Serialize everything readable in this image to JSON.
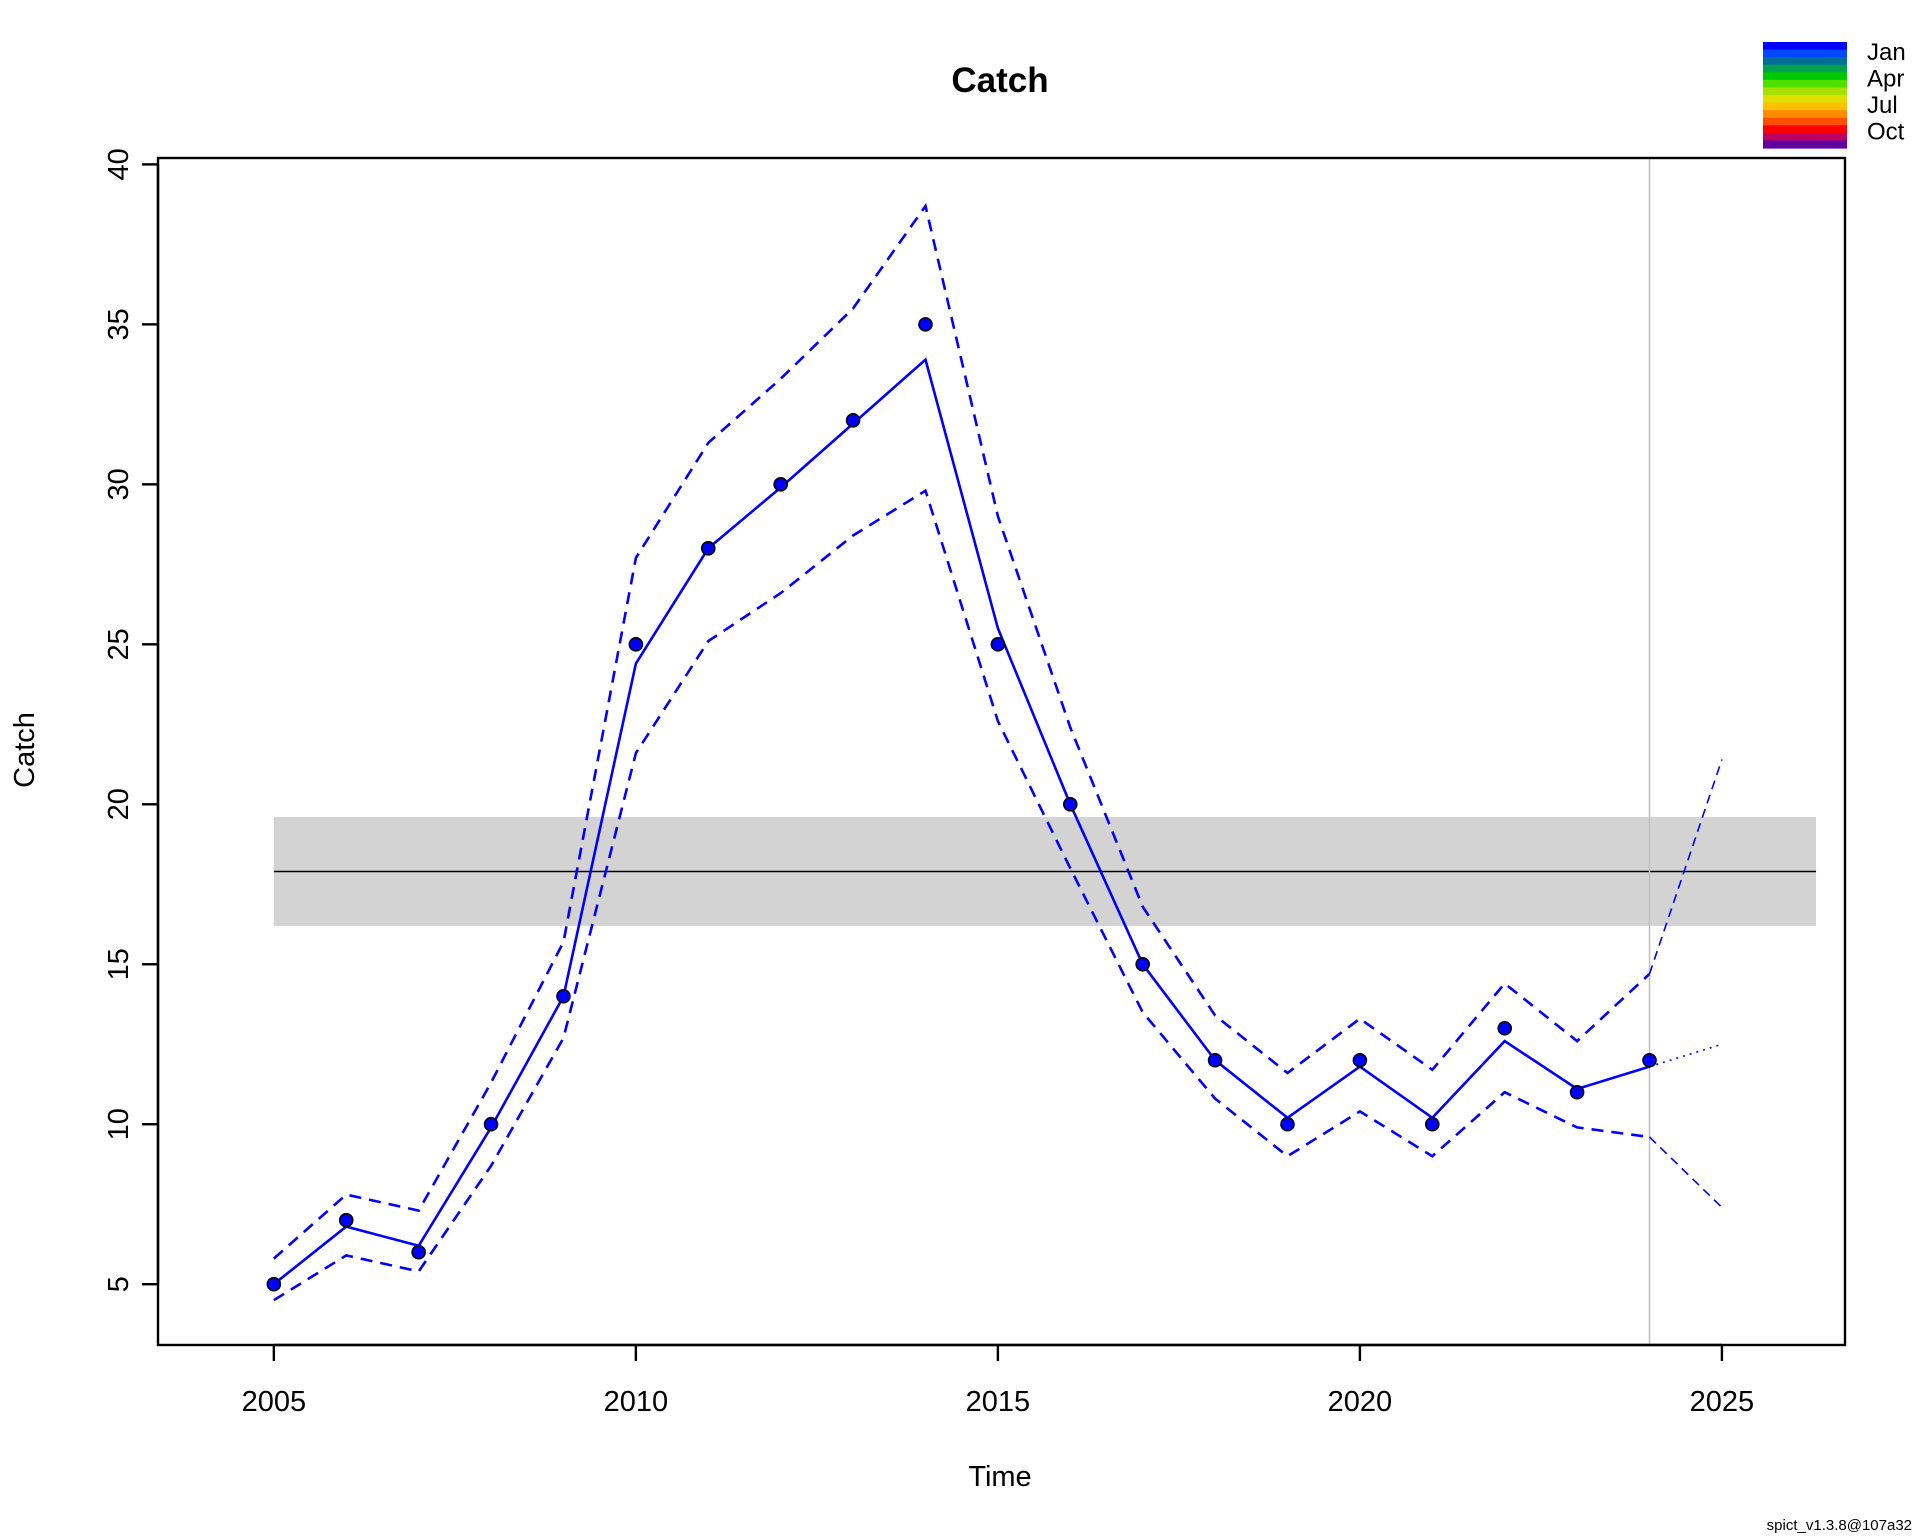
{
  "chart_data": {
    "type": "line",
    "title": "Catch",
    "xlabel": "Time",
    "ylabel": "Catch",
    "xlim": [
      2003.4,
      2026.7
    ],
    "ylim": [
      3.1,
      40.2
    ],
    "x_ticks": [
      "2005",
      "2010",
      "2015",
      "2020",
      "2025"
    ],
    "y_ticks": [
      "5",
      "10",
      "15",
      "20",
      "25",
      "30",
      "35",
      "40"
    ],
    "grid": false,
    "observed": {
      "x": [
        2005,
        2006,
        2007,
        2008,
        2009,
        2010,
        2011,
        2012,
        2013,
        2014,
        2015,
        2016,
        2017,
        2018,
        2019,
        2020,
        2021,
        2022,
        2023,
        2024
      ],
      "y": [
        5,
        7,
        6,
        10,
        14,
        25,
        28,
        30,
        32,
        35,
        25,
        20,
        15,
        12,
        10,
        12,
        10,
        13,
        11,
        12
      ]
    },
    "fitted": {
      "x": [
        2005,
        2006,
        2007,
        2008,
        2009,
        2010,
        2011,
        2012,
        2013,
        2014,
        2015,
        2016,
        2017,
        2018,
        2019,
        2020,
        2021,
        2022,
        2023,
        2024
      ],
      "estimate": [
        5.0,
        6.8,
        6.2,
        9.9,
        14.0,
        24.4,
        28.0,
        29.9,
        31.9,
        33.9,
        25.5,
        20.0,
        15.0,
        12.0,
        10.2,
        11.8,
        10.2,
        12.6,
        11.1,
        11.8
      ],
      "upper": [
        5.8,
        7.8,
        7.3,
        11.3,
        15.7,
        27.7,
        31.3,
        33.3,
        35.5,
        38.7,
        29.0,
        22.4,
        16.8,
        13.4,
        11.6,
        13.3,
        11.7,
        14.4,
        12.6,
        14.7
      ],
      "lower": [
        4.5,
        5.9,
        5.4,
        8.7,
        12.7,
        21.6,
        25.1,
        26.6,
        28.4,
        29.8,
        22.6,
        18.0,
        13.5,
        10.8,
        9.0,
        10.4,
        9.0,
        11.0,
        9.9,
        9.6
      ]
    },
    "forecast": {
      "x": [
        2024,
        2025
      ],
      "estimate": [
        11.8,
        12.5
      ],
      "upper": [
        14.7,
        21.4
      ],
      "lower": [
        9.6,
        7.4
      ]
    },
    "msy": {
      "value": 17.9,
      "lower": 16.2,
      "upper": 19.6,
      "x_range": [
        2005,
        2026.3
      ]
    },
    "vline_x": 2024,
    "legend": {
      "placement": "top-right",
      "labels": [
        "Jan",
        "Apr",
        "Jul",
        "Oct"
      ],
      "gradient_colors": [
        "#0000ff",
        "#0047ff",
        "#006e96",
        "#00a050",
        "#00c800",
        "#4fe000",
        "#a8e000",
        "#e0e000",
        "#ffc000",
        "#ff8c00",
        "#ff5000",
        "#ff0000",
        "#c00060",
        "#6000a0"
      ]
    },
    "colors": {
      "series": "#0000ff",
      "point_fill": "#0000ff",
      "point_stroke": "#000000",
      "msy_band": "#d3d3d3",
      "msy_line": "#000000",
      "vline": "#bebebe"
    }
  },
  "footer": "spict_v1.3.8@107a32"
}
